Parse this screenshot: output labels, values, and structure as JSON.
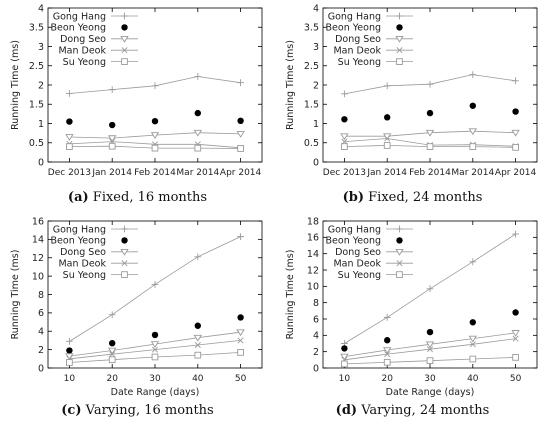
{
  "chart_data": [
    {
      "type": "line",
      "caption_id": "(a)",
      "caption": "Fixed, 16 months",
      "ylabel": "Running Time (ms)",
      "xlabel": "",
      "categories": [
        "Dec 2013",
        "Jan 2014",
        "Feb 2014",
        "Mar 2014",
        "Apr 2014"
      ],
      "ylim": [
        0,
        4
      ],
      "yticks": [
        "0",
        "0.5",
        "1",
        "1.5",
        "2",
        "2.5",
        "3",
        "3.5",
        "4"
      ],
      "series": [
        {
          "name": "Gong Hang",
          "values": [
            1.78,
            1.88,
            1.98,
            2.22,
            2.06
          ]
        },
        {
          "name": "Beon Yeong",
          "values": [
            1.05,
            0.96,
            1.06,
            1.27,
            1.07
          ]
        },
        {
          "name": "Dong Seo",
          "values": [
            0.65,
            0.62,
            0.7,
            0.76,
            0.73
          ]
        },
        {
          "name": "Man Deok",
          "values": [
            0.47,
            0.53,
            0.46,
            0.46,
            0.37
          ]
        },
        {
          "name": "Su Yeong",
          "values": [
            0.4,
            0.41,
            0.36,
            0.36,
            0.35
          ]
        }
      ]
    },
    {
      "type": "line",
      "caption_id": "(b)",
      "caption": "Fixed, 24 months",
      "ylabel": "Running Time (ms)",
      "xlabel": "",
      "categories": [
        "Dec 2013",
        "Jan 2014",
        "Feb 2014",
        "Mar 2014",
        "Apr 2014"
      ],
      "ylim": [
        0,
        4
      ],
      "yticks": [
        "0",
        "0.5",
        "1",
        "1.5",
        "2",
        "2.5",
        "3",
        "3.5",
        "4"
      ],
      "series": [
        {
          "name": "Gong Hang",
          "values": [
            1.77,
            1.98,
            2.02,
            2.27,
            2.11
          ]
        },
        {
          "name": "Beon Yeong",
          "values": [
            1.11,
            1.16,
            1.27,
            1.46,
            1.31
          ]
        },
        {
          "name": "Dong Seo",
          "values": [
            0.67,
            0.67,
            0.76,
            0.8,
            0.76
          ]
        },
        {
          "name": "Man Deok",
          "values": [
            0.53,
            0.61,
            0.44,
            0.45,
            0.41
          ]
        },
        {
          "name": "Su Yeong",
          "values": [
            0.4,
            0.43,
            0.4,
            0.4,
            0.38
          ]
        }
      ]
    },
    {
      "type": "line",
      "caption_id": "(c)",
      "caption": "Varying, 16 months",
      "ylabel": "Running Time (ms)",
      "xlabel": "Date Range (days)",
      "categories": [
        "10",
        "20",
        "30",
        "40",
        "50"
      ],
      "ylim": [
        0,
        16
      ],
      "yticks": [
        "0",
        "2",
        "4",
        "6",
        "8",
        "10",
        "12",
        "14",
        "16"
      ],
      "series": [
        {
          "name": "Gong Hang",
          "values": [
            2.9,
            5.8,
            9.1,
            12.1,
            14.3
          ]
        },
        {
          "name": "Beon Yeong",
          "values": [
            1.9,
            2.7,
            3.6,
            4.6,
            5.5
          ]
        },
        {
          "name": "Dong Seo",
          "values": [
            1.3,
            1.9,
            2.6,
            3.3,
            3.9
          ]
        },
        {
          "name": "Man Deok",
          "values": [
            1.0,
            1.5,
            2.0,
            2.5,
            3.0
          ]
        },
        {
          "name": "Su Yeong",
          "values": [
            0.6,
            0.9,
            1.2,
            1.4,
            1.7
          ]
        }
      ]
    },
    {
      "type": "line",
      "caption_id": "(d)",
      "caption": "Varying, 24 months",
      "ylabel": "Running Time (ms)",
      "xlabel": "Date Range (days)",
      "categories": [
        "10",
        "20",
        "30",
        "40",
        "50"
      ],
      "ylim": [
        0,
        18
      ],
      "yticks": [
        "0",
        "2",
        "4",
        "6",
        "8",
        "10",
        "12",
        "14",
        "16",
        "18"
      ],
      "series": [
        {
          "name": "Gong Hang",
          "values": [
            3.0,
            6.2,
            9.7,
            13.0,
            16.4
          ]
        },
        {
          "name": "Beon Yeong",
          "values": [
            2.4,
            3.4,
            4.4,
            5.6,
            6.8
          ]
        },
        {
          "name": "Dong Seo",
          "values": [
            1.4,
            2.2,
            2.9,
            3.6,
            4.3
          ]
        },
        {
          "name": "Man Deok",
          "values": [
            1.0,
            1.7,
            2.3,
            2.9,
            3.6
          ]
        },
        {
          "name": "Su Yeong",
          "values": [
            0.5,
            0.7,
            0.9,
            1.1,
            1.3
          ]
        }
      ]
    }
  ],
  "style": {
    "series_colors": [
      "#9a9a9a",
      "#000000",
      "#9a9a9a",
      "#9a9a9a",
      "#9a9a9a"
    ],
    "series_markers": [
      "plus-marker",
      "filled-circle-marker",
      "triangle-down-marker",
      "cross-marker",
      "square-marker"
    ],
    "axis_color": "#000000"
  }
}
